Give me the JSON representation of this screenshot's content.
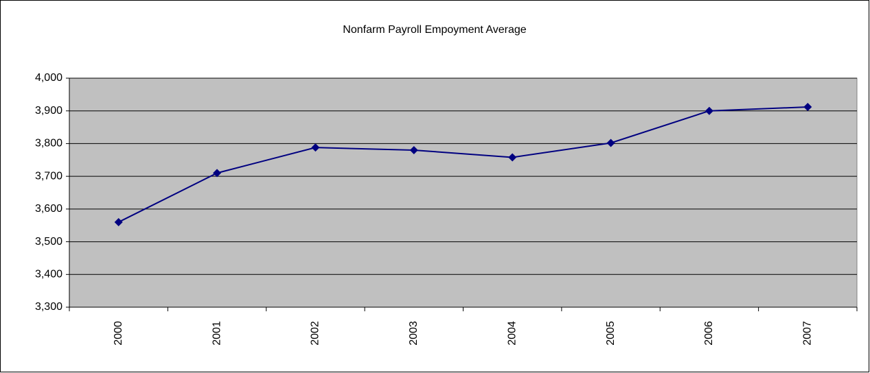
{
  "chart_data": {
    "type": "line",
    "title": "Nonfarm Payroll Empoyment Average",
    "categories": [
      "2000",
      "2001",
      "2002",
      "2003",
      "2004",
      "2005",
      "2006",
      "2007"
    ],
    "values": [
      3560,
      3710,
      3788,
      3780,
      3758,
      3802,
      3900,
      3912
    ],
    "color": "#000080",
    "ylim": [
      3300,
      4000
    ],
    "yticks": [
      {
        "value": 3300,
        "label": "3,300"
      },
      {
        "value": 3400,
        "label": "3,400"
      },
      {
        "value": 3500,
        "label": "3,500"
      },
      {
        "value": 3600,
        "label": "3,600"
      },
      {
        "value": 3700,
        "label": "3,700"
      },
      {
        "value": 3800,
        "label": "3,800"
      },
      {
        "value": 3900,
        "label": "3,900"
      },
      {
        "value": 4000,
        "label": "4,000"
      }
    ],
    "grid": true
  }
}
